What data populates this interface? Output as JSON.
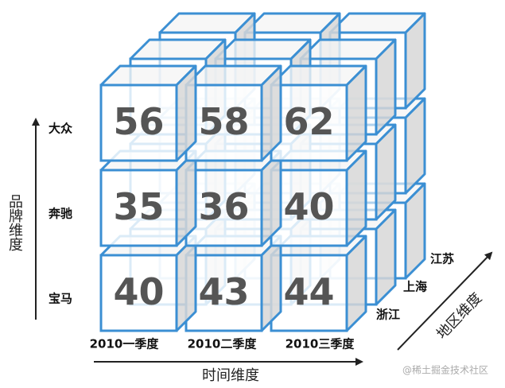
{
  "axes": {
    "brand": {
      "label": "品牌维度",
      "items": [
        "大众",
        "奔驰",
        "宝马"
      ]
    },
    "time": {
      "label": "时间维度",
      "items": [
        "2010一季度",
        "2010二季度",
        "2010三季度"
      ]
    },
    "region": {
      "label": "地区维度",
      "items": [
        "浙江",
        "上海",
        "江苏"
      ]
    }
  },
  "cells": [
    [
      56,
      58,
      62
    ],
    [
      35,
      36,
      40
    ],
    [
      40,
      43,
      44
    ]
  ],
  "watermark": "@稀土掘金技术社区"
}
